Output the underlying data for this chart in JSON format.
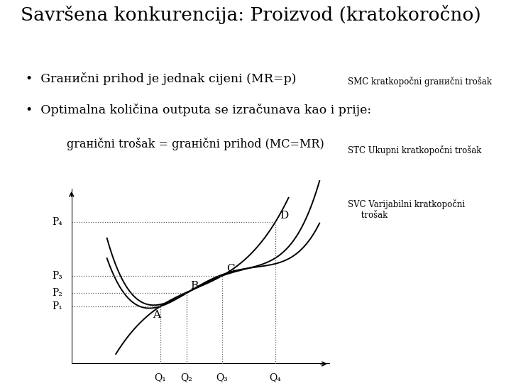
{
  "title": "Savršena konkurencija: Proizvod (kratokoročno)",
  "bg_color": "#ffffff",
  "text_color": "#000000",
  "Q1": 1.0,
  "Q2": 1.3,
  "Q3": 1.7,
  "Q4": 2.3,
  "P1": 1.5,
  "P2": 1.85,
  "P3": 2.3,
  "P4": 3.7,
  "xmin": 0.0,
  "xmax": 3.0,
  "ymin": 0.0,
  "ymax": 4.8,
  "label_SMC": "SMC kratkoроčni grаниčni trošak",
  "label_STC": "STC Ukupni kratkoроčni trošak",
  "label_SVC": "SVC Varijabilni kratkoроčni\n     trošak"
}
